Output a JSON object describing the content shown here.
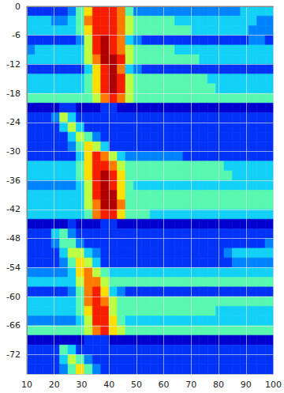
{
  "chart_data": {
    "type": "heatmap",
    "xlim": [
      10,
      100
    ],
    "xticks": [
      10,
      20,
      30,
      40,
      50,
      60,
      70,
      80,
      90,
      100
    ],
    "ylim": [
      -76,
      0
    ],
    "yticks": [
      0,
      -6,
      -12,
      -18,
      -24,
      -30,
      -36,
      -42,
      -48,
      -54,
      -60,
      -66,
      -72
    ],
    "grid": true,
    "value_range": [
      0,
      10
    ],
    "cells": {
      "x_edges": [
        10,
        13,
        16,
        19,
        22,
        25,
        28,
        31,
        34,
        37,
        40,
        43,
        46,
        49,
        52,
        55,
        58,
        61,
        64,
        67,
        70,
        73,
        76,
        79,
        82,
        85,
        88,
        91,
        94,
        97,
        100
      ],
      "y_edges": [
        0,
        -2,
        -4,
        -6,
        -8,
        -10,
        -12,
        -14,
        -16,
        -18,
        -20,
        -22,
        -24,
        -26,
        -28,
        -30,
        -32,
        -34,
        -36,
        -38,
        -40,
        -42,
        -44,
        -46,
        -48,
        -50,
        -52,
        -54,
        -56,
        -58,
        -60,
        -62,
        -64,
        -66,
        -68,
        -70,
        -72,
        -74,
        -76
      ],
      "values": [
        [
          2,
          2,
          2,
          2,
          2,
          3,
          5,
          7,
          9,
          9,
          9,
          8,
          5,
          3,
          3,
          3,
          3,
          3,
          3,
          3,
          3,
          3,
          3,
          3,
          3,
          3,
          4,
          4,
          4,
          4
        ],
        [
          4,
          4,
          4,
          3,
          3,
          4,
          5,
          8,
          9,
          9,
          9,
          8,
          6,
          5,
          5,
          5,
          5,
          5,
          4,
          4,
          4,
          4,
          4,
          4,
          4,
          4,
          4,
          4,
          3,
          3
        ],
        [
          4,
          4,
          4,
          4,
          4,
          4,
          5,
          7,
          9,
          9,
          9,
          8,
          6,
          5,
          5,
          5,
          5,
          5,
          5,
          5,
          4,
          4,
          4,
          4,
          4,
          4,
          4,
          3,
          3,
          3
        ],
        [
          2,
          2,
          2,
          2,
          2,
          2,
          3,
          6,
          9,
          10,
          9,
          8,
          4,
          3,
          2,
          2,
          2,
          2,
          2,
          2,
          2,
          2,
          2,
          2,
          2,
          2,
          2,
          3,
          3,
          2
        ],
        [
          3,
          4,
          4,
          4,
          4,
          4,
          4,
          6,
          9,
          10,
          9,
          8,
          6,
          5,
          5,
          5,
          5,
          5,
          4,
          4,
          4,
          4,
          4,
          4,
          4,
          4,
          4,
          4,
          4,
          4
        ],
        [
          4,
          4,
          4,
          4,
          4,
          4,
          4,
          6,
          8,
          10,
          10,
          9,
          6,
          5,
          5,
          5,
          5,
          5,
          5,
          5,
          5,
          4,
          4,
          4,
          4,
          4,
          4,
          4,
          4,
          4
        ],
        [
          2,
          2,
          2,
          2,
          2,
          2,
          2,
          4,
          7,
          9,
          10,
          8,
          4,
          3,
          2,
          2,
          2,
          2,
          2,
          2,
          2,
          2,
          2,
          2,
          2,
          2,
          2,
          2,
          2,
          2
        ],
        [
          4,
          4,
          4,
          4,
          4,
          4,
          4,
          5,
          7,
          9,
          10,
          9,
          6,
          5,
          5,
          5,
          5,
          5,
          5,
          5,
          5,
          5,
          4,
          4,
          4,
          4,
          4,
          4,
          4,
          4
        ],
        [
          4,
          4,
          4,
          4,
          4,
          4,
          4,
          5,
          7,
          9,
          10,
          9,
          6,
          5,
          5,
          5,
          5,
          5,
          5,
          5,
          5,
          5,
          5,
          4,
          4,
          4,
          4,
          4,
          4,
          4
        ],
        [
          5,
          5,
          5,
          5,
          5,
          5,
          5,
          5,
          6,
          8,
          9,
          8,
          6,
          5,
          5,
          5,
          5,
          5,
          5,
          5,
          5,
          5,
          5,
          5,
          5,
          5,
          5,
          5,
          5,
          5
        ],
        [
          1,
          1,
          1,
          1,
          2,
          2,
          1,
          1,
          1,
          2,
          2,
          1,
          1,
          1,
          1,
          1,
          1,
          1,
          1,
          1,
          1,
          1,
          1,
          1,
          1,
          1,
          1,
          1,
          1,
          1
        ],
        [
          2,
          2,
          2,
          3,
          6,
          4,
          2,
          2,
          2,
          2,
          2,
          2,
          2,
          2,
          2,
          2,
          2,
          2,
          2,
          2,
          2,
          2,
          2,
          2,
          2,
          2,
          2,
          2,
          2,
          2
        ],
        [
          2,
          2,
          2,
          2,
          4,
          6,
          4,
          2,
          2,
          2,
          2,
          2,
          2,
          2,
          2,
          2,
          2,
          2,
          2,
          2,
          2,
          2,
          2,
          2,
          2,
          2,
          2,
          2,
          2,
          2
        ],
        [
          2,
          2,
          2,
          2,
          2,
          4,
          6,
          5,
          3,
          2,
          2,
          2,
          2,
          2,
          2,
          2,
          2,
          2,
          2,
          2,
          2,
          2,
          2,
          2,
          2,
          2,
          2,
          2,
          2,
          2
        ],
        [
          2,
          2,
          2,
          2,
          2,
          3,
          5,
          7,
          6,
          4,
          2,
          2,
          2,
          2,
          2,
          2,
          2,
          2,
          2,
          2,
          2,
          2,
          2,
          2,
          2,
          2,
          2,
          2,
          2,
          2
        ],
        [
          2,
          2,
          2,
          2,
          2,
          2,
          4,
          7,
          9,
          8,
          6,
          4,
          3,
          3,
          3,
          3,
          3,
          3,
          3,
          2,
          2,
          2,
          2,
          2,
          2,
          2,
          2,
          2,
          2,
          2
        ],
        [
          4,
          4,
          4,
          4,
          4,
          4,
          5,
          7,
          9,
          9,
          8,
          6,
          5,
          5,
          5,
          5,
          5,
          5,
          5,
          5,
          5,
          5,
          5,
          5,
          4,
          4,
          4,
          4,
          4,
          4
        ],
        [
          4,
          4,
          4,
          4,
          4,
          4,
          5,
          7,
          9,
          10,
          9,
          7,
          5,
          5,
          5,
          5,
          5,
          5,
          5,
          5,
          5,
          5,
          5,
          5,
          5,
          4,
          4,
          4,
          4,
          4
        ],
        [
          3,
          3,
          3,
          3,
          3,
          3,
          4,
          6,
          9,
          10,
          9,
          7,
          5,
          4,
          4,
          4,
          4,
          4,
          4,
          4,
          4,
          4,
          4,
          4,
          4,
          4,
          4,
          4,
          4,
          4
        ],
        [
          4,
          4,
          4,
          4,
          4,
          4,
          4,
          6,
          9,
          10,
          10,
          7,
          5,
          5,
          5,
          5,
          5,
          5,
          5,
          5,
          5,
          5,
          5,
          5,
          5,
          5,
          5,
          5,
          5,
          5
        ],
        [
          4,
          4,
          4,
          4,
          4,
          4,
          4,
          6,
          8,
          10,
          10,
          8,
          5,
          5,
          5,
          5,
          5,
          5,
          5,
          5,
          5,
          5,
          5,
          5,
          5,
          5,
          5,
          5,
          5,
          5
        ],
        [
          4,
          4,
          4,
          4,
          4,
          4,
          4,
          5,
          8,
          9,
          9,
          7,
          5,
          5,
          5,
          4,
          4,
          4,
          4,
          4,
          4,
          4,
          4,
          4,
          4,
          4,
          4,
          4,
          4,
          4
        ],
        [
          1,
          1,
          1,
          1,
          1,
          2,
          1,
          1,
          1,
          2,
          2,
          1,
          1,
          1,
          1,
          1,
          1,
          1,
          1,
          1,
          1,
          1,
          1,
          1,
          1,
          1,
          1,
          1,
          1,
          1
        ],
        [
          2,
          2,
          2,
          4,
          5,
          3,
          2,
          2,
          2,
          2,
          2,
          2,
          2,
          2,
          2,
          2,
          2,
          2,
          2,
          2,
          2,
          2,
          2,
          2,
          2,
          2,
          2,
          2,
          2,
          2
        ],
        [
          2,
          2,
          2,
          3,
          5,
          5,
          3,
          2,
          2,
          2,
          2,
          2,
          2,
          2,
          2,
          2,
          2,
          2,
          2,
          2,
          2,
          2,
          2,
          2,
          2,
          2,
          2,
          2,
          2,
          3
        ],
        [
          2,
          2,
          2,
          2,
          4,
          6,
          6,
          4,
          3,
          2,
          2,
          2,
          2,
          2,
          2,
          2,
          2,
          2,
          2,
          2,
          2,
          2,
          2,
          2,
          3,
          4,
          4,
          4,
          4,
          4
        ],
        [
          2,
          2,
          2,
          2,
          3,
          5,
          7,
          6,
          4,
          2,
          2,
          2,
          2,
          2,
          2,
          2,
          2,
          2,
          2,
          2,
          2,
          2,
          2,
          2,
          2,
          3,
          3,
          3,
          3,
          3
        ],
        [
          3,
          3,
          3,
          3,
          3,
          4,
          7,
          8,
          6,
          5,
          4,
          4,
          4,
          4,
          4,
          4,
          4,
          4,
          4,
          4,
          4,
          4,
          4,
          4,
          4,
          4,
          4,
          4,
          4,
          4
        ],
        [
          4,
          4,
          4,
          4,
          4,
          4,
          6,
          8,
          8,
          6,
          5,
          5,
          5,
          5,
          5,
          5,
          5,
          5,
          5,
          5,
          5,
          5,
          5,
          5,
          5,
          5,
          5,
          5,
          5,
          5
        ],
        [
          2,
          2,
          2,
          2,
          2,
          3,
          5,
          8,
          9,
          7,
          4,
          3,
          2,
          2,
          2,
          2,
          2,
          2,
          2,
          2,
          2,
          2,
          2,
          2,
          2,
          2,
          2,
          2,
          2,
          2
        ],
        [
          4,
          4,
          4,
          4,
          4,
          4,
          5,
          8,
          9,
          8,
          6,
          5,
          5,
          5,
          5,
          5,
          5,
          5,
          5,
          5,
          5,
          5,
          5,
          5,
          5,
          5,
          5,
          5,
          5,
          5
        ],
        [
          4,
          4,
          4,
          4,
          4,
          4,
          5,
          7,
          9,
          9,
          6,
          5,
          5,
          5,
          5,
          5,
          5,
          5,
          5,
          5,
          5,
          5,
          5,
          4,
          4,
          4,
          4,
          4,
          4,
          4
        ],
        [
          3,
          3,
          3,
          3,
          3,
          3,
          4,
          6,
          9,
          9,
          7,
          5,
          4,
          4,
          4,
          4,
          4,
          4,
          4,
          4,
          4,
          4,
          4,
          4,
          4,
          4,
          4,
          4,
          4,
          4
        ],
        [
          5,
          5,
          5,
          5,
          5,
          5,
          5,
          6,
          8,
          9,
          7,
          6,
          5,
          5,
          5,
          5,
          5,
          5,
          5,
          5,
          5,
          5,
          5,
          5,
          5,
          5,
          5,
          5,
          5,
          5
        ],
        [
          1,
          1,
          1,
          1,
          1,
          1,
          1,
          2,
          2,
          2,
          1,
          1,
          1,
          1,
          1,
          1,
          1,
          1,
          1,
          1,
          1,
          1,
          1,
          1,
          1,
          1,
          1,
          1,
          1,
          1
        ],
        [
          2,
          2,
          2,
          2,
          5,
          4,
          2,
          2,
          2,
          2,
          2,
          2,
          2,
          2,
          2,
          2,
          2,
          2,
          2,
          2,
          2,
          2,
          2,
          2,
          2,
          2,
          2,
          2,
          2,
          2
        ],
        [
          2,
          2,
          2,
          2,
          4,
          6,
          5,
          3,
          2,
          2,
          2,
          2,
          2,
          2,
          2,
          2,
          2,
          2,
          2,
          2,
          2,
          2,
          2,
          2,
          2,
          2,
          2,
          2,
          2,
          2
        ],
        [
          2,
          2,
          2,
          2,
          3,
          5,
          7,
          5,
          3,
          2,
          2,
          2,
          2,
          2,
          2,
          2,
          2,
          2,
          2,
          2,
          2,
          2,
          2,
          2,
          2,
          2,
          2,
          2,
          2,
          2
        ]
      ]
    }
  }
}
